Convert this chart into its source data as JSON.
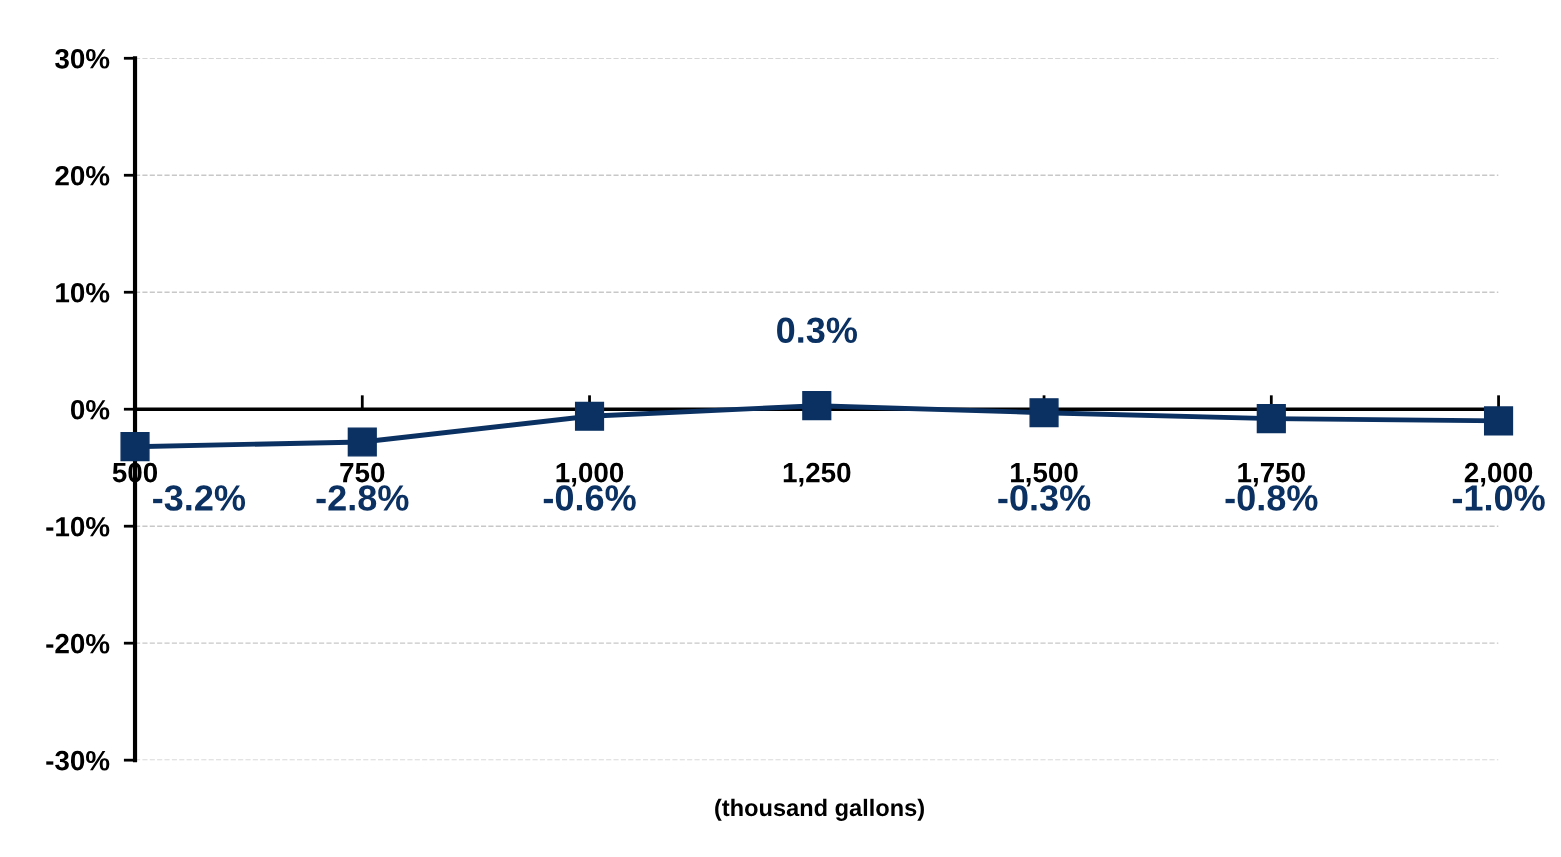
{
  "chart_data": {
    "type": "line",
    "xlabel": "(thousand gallons)",
    "categories": [
      "500",
      "750",
      "1,000",
      "1,250",
      "1,500",
      "1,750",
      "2,000"
    ],
    "series": [
      {
        "color": "#0b3162",
        "values": [
          -3.2,
          -2.8,
          -0.6,
          0.3,
          -0.3,
          -0.8,
          -1.0
        ],
        "value_labels": [
          "-3.2%",
          "-2.8%",
          "-0.6%",
          "0.3%",
          "-0.3%",
          "-0.8%",
          "-1.0%"
        ]
      }
    ],
    "ylim": [
      -30,
      30
    ],
    "yticks": [
      {
        "value": -30,
        "label": "-30%"
      },
      {
        "value": -20,
        "label": "-20%"
      },
      {
        "value": -10,
        "label": "-10%"
      },
      {
        "value": 0,
        "label": "0%"
      },
      {
        "value": 10,
        "label": "10%"
      },
      {
        "value": 20,
        "label": "20%"
      },
      {
        "value": 30,
        "label": "30%"
      }
    ],
    "grid": "y",
    "marker": "square",
    "line_style": "solid"
  }
}
